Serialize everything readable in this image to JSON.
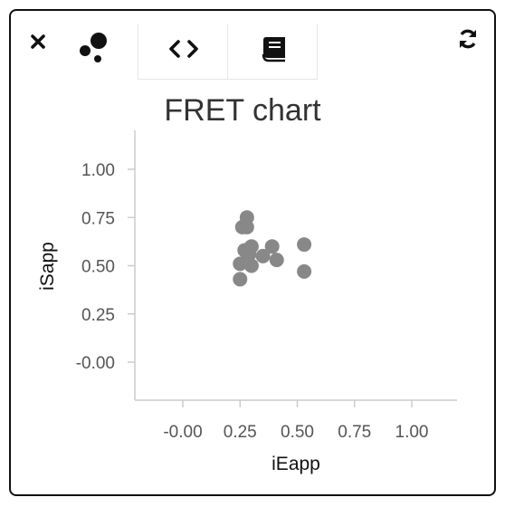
{
  "toolbar": {
    "icons": [
      "close-icon",
      "scatter-icon",
      "code-icon",
      "book-icon",
      "refresh-icon"
    ]
  },
  "colors": {
    "points": "#888888",
    "axis": "#cccccc",
    "text": "#555555"
  },
  "chart_data": {
    "type": "scatter",
    "title": "FRET chart",
    "xlabel": "iEapp",
    "ylabel": "iSapp",
    "xlim": [
      -0.2,
      1.2
    ],
    "ylim": [
      -0.2,
      1.2
    ],
    "xticks": [
      "-0.00",
      "0.25",
      "0.50",
      "0.75",
      "1.00"
    ],
    "yticks": [
      "-0.00",
      "0.25",
      "0.50",
      "0.75",
      "1.00"
    ],
    "xtick_values": [
      0,
      0.25,
      0.5,
      0.75,
      1.0
    ],
    "ytick_values": [
      0,
      0.25,
      0.5,
      0.75,
      1.0
    ],
    "grid": false,
    "points": [
      {
        "x": 0.28,
        "y": 0.75
      },
      {
        "x": 0.26,
        "y": 0.7
      },
      {
        "x": 0.28,
        "y": 0.7
      },
      {
        "x": 0.27,
        "y": 0.58
      },
      {
        "x": 0.3,
        "y": 0.6
      },
      {
        "x": 0.39,
        "y": 0.6
      },
      {
        "x": 0.53,
        "y": 0.61
      },
      {
        "x": 0.29,
        "y": 0.56
      },
      {
        "x": 0.35,
        "y": 0.55
      },
      {
        "x": 0.28,
        "y": 0.52
      },
      {
        "x": 0.41,
        "y": 0.53
      },
      {
        "x": 0.25,
        "y": 0.51
      },
      {
        "x": 0.3,
        "y": 0.5
      },
      {
        "x": 0.53,
        "y": 0.47
      },
      {
        "x": 0.25,
        "y": 0.43
      }
    ]
  }
}
